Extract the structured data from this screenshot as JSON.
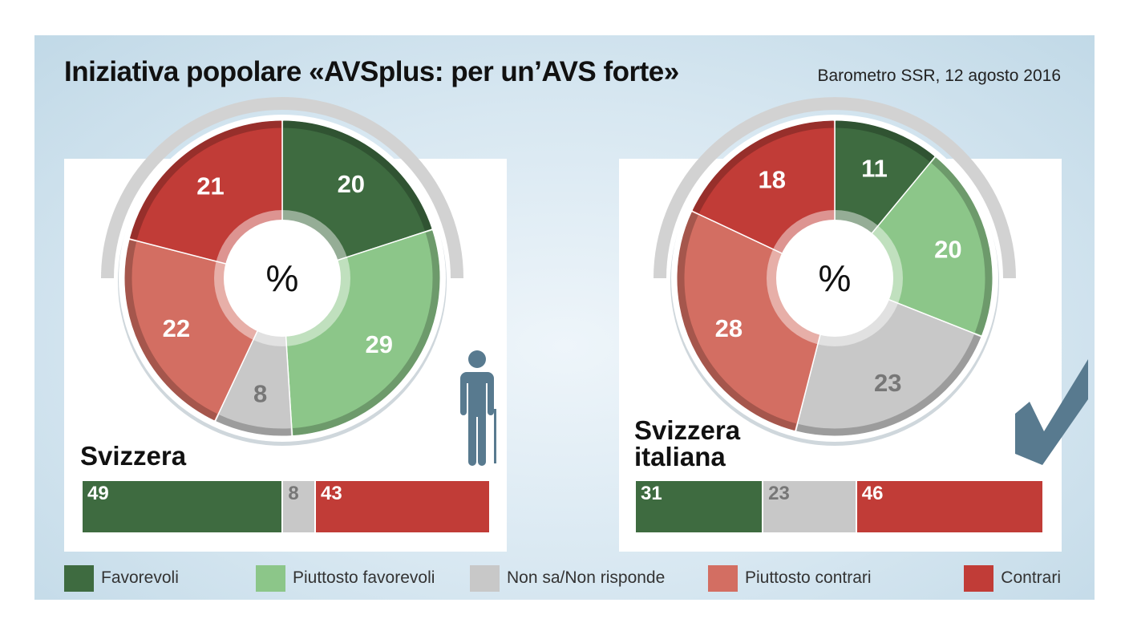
{
  "title": "Iniziativa popolare «AVSplus: per un’AVS forte»",
  "source": "Barometro SSR, 12 agosto 2016",
  "colors": {
    "favorevoli": "#3e6b40",
    "piuttosto_favorevoli": "#8cc689",
    "non_sa": "#c8c8c8",
    "piuttosto_contrari": "#d36e62",
    "contrari": "#c13c37"
  },
  "legend": [
    {
      "label": "Favorevoli",
      "color": "#3e6b40"
    },
    {
      "label": "Piuttosto favorevoli",
      "color": "#8cc689"
    },
    {
      "label": "Non sa/Non risponde",
      "color": "#c8c8c8"
    },
    {
      "label": "Piuttosto contrari",
      "color": "#d36e62"
    },
    {
      "label": "Contrari",
      "color": "#c13c37"
    }
  ],
  "icons": {
    "left": "elderly-person-icon",
    "right": "checkmark-icon"
  },
  "chart_data": [
    {
      "type": "pie",
      "region": "Svizzera",
      "center_label": "%",
      "categories": [
        "Favorevoli",
        "Piuttosto favorevoli",
        "Non sa/Non risponde",
        "Piuttosto contrari",
        "Contrari"
      ],
      "values": [
        20,
        29,
        8,
        22,
        21
      ]
    },
    {
      "type": "bar",
      "region": "Svizzera",
      "categories": [
        "Favorevoli",
        "Non sa/Non risponde",
        "Contrari"
      ],
      "values": [
        49,
        8,
        43
      ]
    },
    {
      "type": "pie",
      "region": "Svizzera italiana",
      "center_label": "%",
      "categories": [
        "Favorevoli",
        "Piuttosto favorevoli",
        "Non sa/Non risponde",
        "Piuttosto contrari",
        "Contrari"
      ],
      "values": [
        11,
        20,
        23,
        28,
        18
      ]
    },
    {
      "type": "bar",
      "region": "Svizzera italiana",
      "categories": [
        "Favorevoli",
        "Non sa/Non risponde",
        "Contrari"
      ],
      "values": [
        31,
        23,
        46
      ]
    }
  ]
}
